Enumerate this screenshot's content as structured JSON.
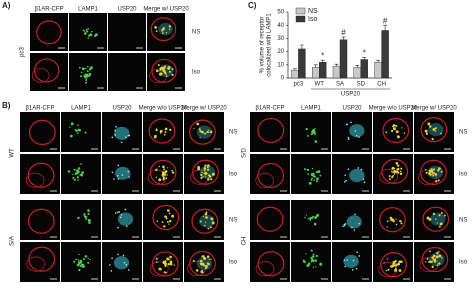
{
  "panel_a": {
    "label": "A)",
    "columns": [
      "β1AR-CFP",
      "LAMP1",
      "USP20",
      "Merge w/ USP20"
    ],
    "row_label": "pc3",
    "rows": [
      "NS",
      "Iso"
    ]
  },
  "panel_b": {
    "label": "B)",
    "left": {
      "columns": [
        "β1AR-CFP",
        "LAMP1",
        "USP20",
        "Merge w/o USP20",
        "Merge w/ USP20"
      ],
      "groups": [
        {
          "name": "WT",
          "rows": [
            "NS",
            "Iso"
          ]
        },
        {
          "name": "S/A",
          "rows": [
            "NS",
            "Iso"
          ]
        }
      ]
    },
    "right": {
      "columns": [
        "β1AR-CFP",
        "LAMP1",
        "USP20",
        "Merge w/o USP20",
        "Merge w/ USP20"
      ],
      "groups": [
        {
          "name": "S/D",
          "rows": [
            "NS",
            "Iso"
          ]
        },
        {
          "name": "CH",
          "rows": [
            "NS",
            "Iso"
          ]
        }
      ]
    }
  },
  "panel_c": {
    "label": "C)"
  },
  "chart_data": {
    "type": "bar",
    "ylabel": [
      "% volume of receptor",
      "colocalized with LAMP1"
    ],
    "xlabel": "USP20",
    "categories": [
      "pc3",
      "WT",
      "SA",
      "SD",
      "CH"
    ],
    "ylim": [
      0,
      50
    ],
    "yticks": [
      0,
      10,
      20,
      30,
      40,
      50
    ],
    "legend": "upper-left",
    "series": [
      {
        "name": "NS",
        "color": "#c8c8c8",
        "values": [
          6,
          8,
          9,
          8,
          12
        ],
        "errors": [
          1,
          2,
          1.5,
          1.5,
          1.5
        ]
      },
      {
        "name": "Iso",
        "color": "#3a3a3a",
        "values": [
          22,
          12,
          29,
          14,
          36
        ],
        "errors": [
          3,
          1.5,
          2,
          1.5,
          4
        ],
        "markers": [
          null,
          "*",
          "#",
          "*",
          "#"
        ]
      }
    ]
  }
}
